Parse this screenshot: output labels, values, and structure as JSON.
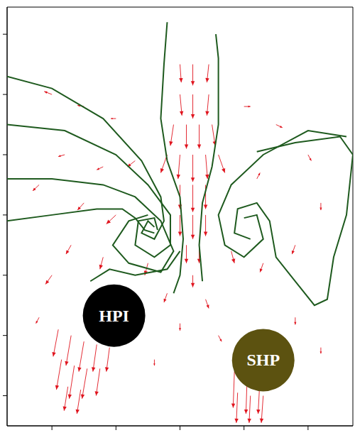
{
  "chart_data": {
    "type": "vector_field",
    "xlim": [
      0.3,
      5.7
    ],
    "xticks": [
      1,
      2,
      3,
      4,
      5
    ],
    "ylim": [
      0.5,
      7.45
    ],
    "yticks": [
      1,
      2,
      3,
      4,
      5,
      6,
      7
    ],
    "tick_labels": false,
    "grid": false,
    "vectors": {
      "color": "#e0141e",
      "x": [
        3.0,
        3.2,
        3.45,
        3.0,
        3.2,
        3.45,
        2.9,
        3.1,
        3.3,
        3.5,
        2.8,
        3.0,
        3.2,
        3.4,
        3.6,
        3.0,
        3.2,
        3.4,
        3.0,
        3.2,
        3.4,
        3.1,
        3.3,
        3.2,
        1.0,
        1.5,
        2.0,
        1.2,
        1.8,
        2.3,
        0.8,
        1.5,
        2.0,
        1.3,
        1.8,
        2.5,
        1.0,
        4.0,
        4.5,
        5.0,
        4.2,
        5.2,
        4.8,
        4.3,
        3.8,
        2.8,
        3.4,
        3.0,
        3.6,
        2.6,
        4.8,
        5.2,
        0.8,
        1.1,
        1.3,
        1.5,
        1.7,
        1.9,
        1.15,
        1.35,
        1.55,
        1.75,
        1.25,
        1.45,
        3.85,
        4.05,
        4.25,
        3.9,
        4.1,
        4.3
      ],
      "y": [
        6.5,
        6.5,
        6.5,
        6.0,
        6.0,
        6.0,
        5.5,
        5.5,
        5.5,
        5.5,
        5.0,
        5.0,
        5.0,
        5.0,
        5.0,
        4.5,
        4.5,
        4.5,
        4.0,
        4.0,
        4.0,
        3.5,
        3.5,
        3.0,
        6.0,
        5.8,
        5.6,
        5.0,
        4.8,
        4.9,
        4.5,
        4.2,
        4.0,
        3.5,
        3.3,
        3.2,
        3.0,
        5.8,
        5.5,
        5.0,
        4.6,
        4.2,
        3.5,
        3.2,
        3.4,
        2.7,
        2.6,
        2.2,
        2.0,
        1.6,
        2.3,
        1.8,
        2.3,
        2.1,
        2.0,
        1.9,
        1.85,
        1.8,
        1.6,
        1.5,
        1.45,
        1.45,
        1.15,
        1.1,
        1.4,
        1.35,
        1.3,
        1.05,
        1.0,
        1.0
      ],
      "u": [
        0.02,
        0,
        -0.03,
        0.03,
        0,
        -0.03,
        -0.05,
        0,
        0,
        0.05,
        -0.1,
        -0.03,
        0,
        0.03,
        0.1,
        0,
        0,
        0,
        0,
        0,
        0,
        0,
        0,
        0,
        -0.12,
        -0.1,
        -0.08,
        -0.1,
        -0.1,
        -0.12,
        -0.1,
        -0.1,
        -0.15,
        -0.08,
        -0.05,
        -0.05,
        -0.1,
        0.1,
        0.1,
        0.05,
        0.05,
        0,
        -0.05,
        -0.05,
        0.05,
        -0.05,
        0.05,
        0,
        0.05,
        0,
        0,
        0,
        -0.05,
        -0.08,
        -0.08,
        -0.08,
        -0.06,
        -0.05,
        -0.08,
        -0.08,
        -0.08,
        -0.06,
        -0.06,
        -0.06,
        -0.02,
        -0.02,
        -0.03,
        -0.02,
        -0.02,
        -0.03
      ],
      "v": [
        -0.3,
        -0.35,
        -0.3,
        -0.35,
        -0.4,
        -0.35,
        -0.35,
        -0.4,
        -0.4,
        -0.35,
        -0.3,
        -0.4,
        -0.45,
        -0.4,
        -0.3,
        -0.4,
        -0.45,
        -0.4,
        -0.35,
        -0.4,
        -0.35,
        -0.3,
        -0.3,
        -0.2,
        0.05,
        0.02,
        0,
        -0.03,
        -0.05,
        -0.1,
        -0.1,
        -0.12,
        -0.15,
        -0.15,
        -0.2,
        -0.2,
        -0.15,
        0,
        -0.05,
        -0.1,
        0.1,
        -0.12,
        -0.15,
        -0.15,
        -0.2,
        -0.15,
        -0.15,
        -0.12,
        -0.1,
        -0.1,
        -0.12,
        -0.1,
        -0.1,
        -0.45,
        -0.5,
        -0.5,
        -0.45,
        -0.4,
        -0.5,
        -0.55,
        -0.5,
        -0.45,
        -0.4,
        -0.4,
        -0.6,
        -0.65,
        -0.6,
        -0.5,
        -0.45,
        -0.45
      ]
    },
    "streamlines": {
      "color": "#1e5a1e",
      "lines": [
        [
          [
            0.3,
            6.3
          ],
          [
            1.0,
            6.1
          ],
          [
            1.8,
            5.6
          ],
          [
            2.4,
            4.9
          ],
          [
            2.7,
            4.3
          ],
          [
            2.75,
            3.9
          ],
          [
            2.6,
            3.6
          ],
          [
            2.4,
            3.7
          ],
          [
            2.5,
            3.9
          ],
          [
            2.6,
            3.8
          ]
        ],
        [
          [
            0.3,
            5.5
          ],
          [
            1.2,
            5.4
          ],
          [
            2.0,
            5.0
          ],
          [
            2.5,
            4.5
          ],
          [
            2.85,
            4.0
          ],
          [
            2.85,
            3.5
          ],
          [
            2.6,
            3.3
          ],
          [
            2.3,
            3.5
          ],
          [
            2.35,
            3.9
          ],
          [
            2.6,
            3.95
          ],
          [
            2.65,
            3.75
          ]
        ],
        [
          [
            0.3,
            4.6
          ],
          [
            1.0,
            4.6
          ],
          [
            1.8,
            4.5
          ],
          [
            2.3,
            4.3
          ],
          [
            2.7,
            3.9
          ],
          [
            2.9,
            3.4
          ],
          [
            2.7,
            3.05
          ],
          [
            2.2,
            3.2
          ],
          [
            1.95,
            3.5
          ],
          [
            2.2,
            3.9
          ],
          [
            2.5,
            4.0
          ]
        ],
        [
          [
            0.3,
            3.9
          ],
          [
            1.0,
            4.0
          ],
          [
            1.7,
            4.1
          ],
          [
            2.1,
            4.1
          ],
          [
            2.3,
            3.95
          ],
          [
            2.45,
            3.75
          ],
          [
            2.6,
            3.7
          ]
        ],
        [
          [
            1.6,
            2.9
          ],
          [
            1.9,
            3.1
          ],
          [
            2.3,
            3.0
          ],
          [
            2.8,
            3.1
          ],
          [
            3.0,
            3.4
          ]
        ],
        [
          [
            2.8,
            7.2
          ],
          [
            2.75,
            6.5
          ],
          [
            2.7,
            5.6
          ],
          [
            2.8,
            4.9
          ],
          [
            3.0,
            4.3
          ],
          [
            3.05,
            3.6
          ],
          [
            3.0,
            3.0
          ],
          [
            2.9,
            2.7
          ]
        ],
        [
          [
            3.56,
            7.0
          ],
          [
            3.6,
            6.6
          ],
          [
            3.6,
            5.5
          ],
          [
            3.5,
            4.8
          ],
          [
            3.35,
            4.2
          ],
          [
            3.3,
            3.5
          ],
          [
            3.35,
            2.9
          ]
        ],
        [
          [
            5.6,
            5.3
          ],
          [
            5.0,
            5.4
          ],
          [
            4.3,
            5.0
          ],
          [
            3.8,
            4.5
          ],
          [
            3.6,
            4.0
          ],
          [
            3.7,
            3.5
          ],
          [
            4.0,
            3.3
          ],
          [
            4.3,
            3.6
          ],
          [
            4.2,
            4.0
          ],
          [
            4.0,
            3.95
          ]
        ],
        [
          [
            4.2,
            5.05
          ],
          [
            4.8,
            5.2
          ],
          [
            5.5,
            5.3
          ],
          [
            5.7,
            5.0
          ],
          [
            5.6,
            4.0
          ],
          [
            5.4,
            3.3
          ],
          [
            5.3,
            2.6
          ],
          [
            5.1,
            2.5
          ],
          [
            4.8,
            2.9
          ],
          [
            4.5,
            3.3
          ],
          [
            4.4,
            3.9
          ],
          [
            4.2,
            4.2
          ],
          [
            3.9,
            4.1
          ],
          [
            3.85,
            3.7
          ],
          [
            4.1,
            3.6
          ]
        ]
      ]
    },
    "annotations": [
      {
        "text": "HPI",
        "x": 1.97,
        "y": 2.33,
        "color": "#000000"
      },
      {
        "text": "SHP",
        "x": 4.3,
        "y": 1.59,
        "color": "#5c5210"
      }
    ]
  }
}
